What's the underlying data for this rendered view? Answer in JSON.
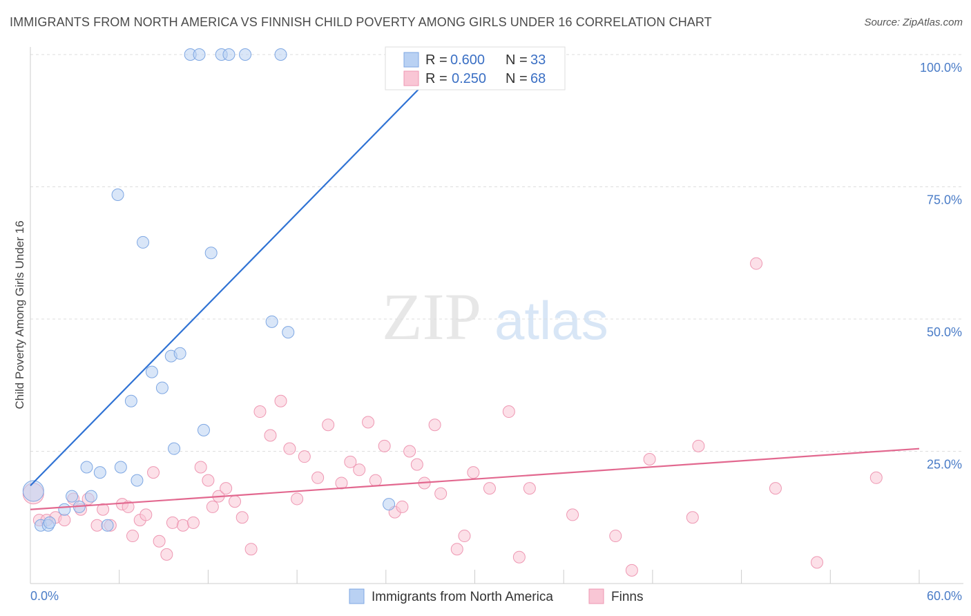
{
  "title": "IMMIGRANTS FROM NORTH AMERICA VS FINNISH CHILD POVERTY AMONG GIRLS UNDER 16 CORRELATION CHART",
  "source": "Source: ZipAtlas.com",
  "watermark": {
    "zip": "ZIP",
    "atlas": "atlas"
  },
  "colors": {
    "blue_fill": "#b9d1f3",
    "blue_stroke": "#7ea7e3",
    "blue_line": "#2f72d4",
    "pink_fill": "#f9c6d5",
    "pink_stroke": "#ee97b2",
    "pink_line": "#e2688f",
    "grid": "#dddddd",
    "axis_text": "#4a7cc7"
  },
  "legend": {
    "series1": {
      "r_label": "R =",
      "r_value": "0.600",
      "n_label": "N =",
      "n_value": "33"
    },
    "series2": {
      "r_label": "R =",
      "r_value": "0.250",
      "n_label": "N =",
      "n_value": "68"
    }
  },
  "chart_data": {
    "type": "scatter",
    "xlabel": "",
    "ylabel": "Child Poverty Among Girls Under 16",
    "xlim": [
      0,
      60
    ],
    "ylim": [
      0,
      100
    ],
    "x_tick_labels": [
      "0.0%",
      "60.0%"
    ],
    "y_tick_labels": [
      "100.0%",
      "75.0%",
      "50.0%",
      "25.0%"
    ],
    "y_ticks": [
      100,
      75,
      50,
      25
    ],
    "grid": true,
    "legend_position": "top-center",
    "series": [
      {
        "name": "Immigrants from North America",
        "color": "#7ea7e3",
        "trend": {
          "x": [
            0,
            28.5
          ],
          "y": [
            18.5,
            100
          ]
        },
        "points": [
          [
            0.2,
            17.5,
            "large"
          ],
          [
            0.7,
            11
          ],
          [
            1.2,
            11
          ],
          [
            1.3,
            11.5
          ],
          [
            2.3,
            14
          ],
          [
            2.8,
            16.5
          ],
          [
            3.3,
            14.5
          ],
          [
            3.8,
            22
          ],
          [
            4.1,
            16.5
          ],
          [
            4.7,
            21
          ],
          [
            5.2,
            11
          ],
          [
            5.9,
            73.5
          ],
          [
            6.1,
            22
          ],
          [
            6.8,
            34.5
          ],
          [
            7.2,
            19.5
          ],
          [
            7.6,
            64.5
          ],
          [
            8.2,
            40
          ],
          [
            8.9,
            37
          ],
          [
            9.5,
            43
          ],
          [
            9.7,
            25.5
          ],
          [
            10.1,
            43.5
          ],
          [
            10.8,
            100
          ],
          [
            11.4,
            100
          ],
          [
            11.7,
            29
          ],
          [
            12.2,
            62.5
          ],
          [
            12.9,
            100
          ],
          [
            13.4,
            100
          ],
          [
            14.5,
            100
          ],
          [
            16.3,
            49.5
          ],
          [
            16.9,
            100
          ],
          [
            17.4,
            47.5
          ],
          [
            24.2,
            15
          ],
          [
            33.5,
            100
          ]
        ]
      },
      {
        "name": "Finns",
        "color": "#ee97b2",
        "trend": {
          "x": [
            0,
            60
          ],
          "y": [
            14,
            25.5
          ]
        },
        "points": [
          [
            0.2,
            17,
            "large"
          ],
          [
            0.6,
            12
          ],
          [
            1.1,
            12
          ],
          [
            1.7,
            12.5
          ],
          [
            2.3,
            12
          ],
          [
            2.9,
            16
          ],
          [
            3.4,
            14
          ],
          [
            3.9,
            16
          ],
          [
            4.5,
            11
          ],
          [
            4.9,
            14
          ],
          [
            5.4,
            11
          ],
          [
            6.2,
            15
          ],
          [
            6.6,
            14.5
          ],
          [
            6.9,
            9
          ],
          [
            7.4,
            12
          ],
          [
            7.8,
            13
          ],
          [
            8.3,
            21
          ],
          [
            8.7,
            8
          ],
          [
            9.2,
            5.5
          ],
          [
            9.6,
            11.5
          ],
          [
            10.3,
            11
          ],
          [
            11.0,
            11.5
          ],
          [
            11.5,
            22
          ],
          [
            12.0,
            19.5
          ],
          [
            12.3,
            14.5
          ],
          [
            12.7,
            16.5
          ],
          [
            13.2,
            18
          ],
          [
            13.8,
            15.5
          ],
          [
            14.3,
            12.5
          ],
          [
            14.9,
            6.5
          ],
          [
            15.5,
            32.5
          ],
          [
            16.2,
            28
          ],
          [
            16.9,
            34.5
          ],
          [
            17.5,
            25.5
          ],
          [
            18.0,
            16
          ],
          [
            18.5,
            24
          ],
          [
            19.4,
            20
          ],
          [
            20.1,
            30
          ],
          [
            21.0,
            19
          ],
          [
            21.6,
            23
          ],
          [
            22.2,
            21.5
          ],
          [
            22.8,
            30.5
          ],
          [
            23.3,
            19.5
          ],
          [
            23.9,
            26
          ],
          [
            24.6,
            13.5
          ],
          [
            25.1,
            14.5
          ],
          [
            25.6,
            25
          ],
          [
            26.1,
            22.5
          ],
          [
            26.6,
            19
          ],
          [
            27.3,
            30
          ],
          [
            27.7,
            17
          ],
          [
            28.8,
            6.5
          ],
          [
            29.3,
            9
          ],
          [
            29.9,
            21
          ],
          [
            31.0,
            18
          ],
          [
            32.3,
            32.5
          ],
          [
            33.0,
            5
          ],
          [
            33.7,
            18
          ],
          [
            36.6,
            13
          ],
          [
            39.5,
            9
          ],
          [
            40.6,
            2.5
          ],
          [
            41.8,
            23.5
          ],
          [
            44.7,
            12.5
          ],
          [
            45.1,
            26
          ],
          [
            49.0,
            60.5
          ],
          [
            50.3,
            18
          ],
          [
            53.1,
            4
          ],
          [
            57.1,
            20
          ]
        ]
      }
    ]
  }
}
